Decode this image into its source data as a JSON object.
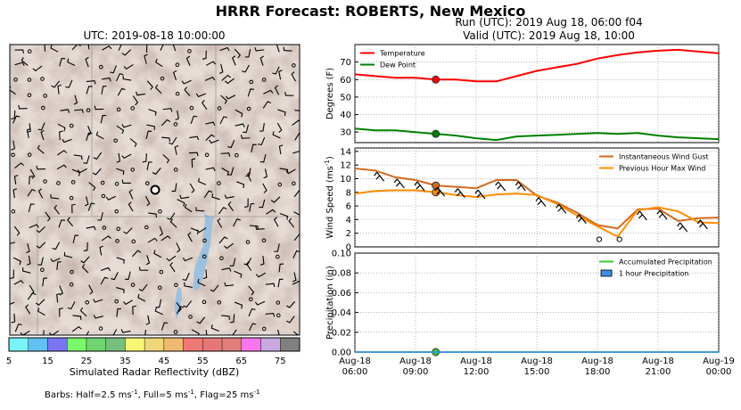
{
  "title": "HRRR Forecast: ROBERTS, New Mexico",
  "map": {
    "title": "UTC: 2019-08-18 10:00:00",
    "colorbar": {
      "label": "Simulated Radar Reflectivity (dBZ)",
      "ticks": [
        "5",
        "15",
        "25",
        "35",
        "45",
        "55",
        "65",
        "75"
      ],
      "colors": [
        "#7af3f7",
        "#62c1f2",
        "#7b75f5",
        "#79f869",
        "#70d46f",
        "#77c07c",
        "#f7f774",
        "#f0d67a",
        "#f0b972",
        "#f07876",
        "#e77776",
        "#e07f7a",
        "#f776f0",
        "#c9a8e0",
        "#808080"
      ]
    },
    "barbs_note": {
      "lead": "Barbs: Half=2.5 ms",
      "half_exp": "-1",
      "mid": ", Full=5 ms",
      "full_exp": "-1",
      "tail": ", Flag=25 ms",
      "flag_exp": "-1"
    }
  },
  "run": {
    "line1": "Run (UTC): 2019 Aug 18, 06:00 f04",
    "line2": "Valid (UTC): 2019 Aug 18, 10:00"
  },
  "x_axis": {
    "tick_labels": [
      {
        "date": "Aug-18",
        "time": "06:00"
      },
      {
        "date": "Aug-18",
        "time": "09:00"
      },
      {
        "date": "Aug-18",
        "time": "12:00"
      },
      {
        "date": "Aug-18",
        "time": "15:00"
      },
      {
        "date": "Aug-18",
        "time": "18:00"
      },
      {
        "date": "Aug-18",
        "time": "21:00"
      },
      {
        "date": "Aug-19",
        "time": "00:00"
      }
    ]
  },
  "chart_data": [
    {
      "type": "line",
      "ylabel": "Degrees (F)",
      "ylim": [
        24,
        80
      ],
      "yticks": [
        "30",
        "40",
        "50",
        "60",
        "70"
      ],
      "x": [
        "2019-08-18 06:00",
        "2019-08-18 07:00",
        "2019-08-18 08:00",
        "2019-08-18 09:00",
        "2019-08-18 10:00",
        "2019-08-18 11:00",
        "2019-08-18 12:00",
        "2019-08-18 13:00",
        "2019-08-18 14:00",
        "2019-08-18 15:00",
        "2019-08-18 16:00",
        "2019-08-18 17:00",
        "2019-08-18 18:00",
        "2019-08-18 19:00",
        "2019-08-18 20:00",
        "2019-08-18 21:00",
        "2019-08-18 22:00",
        "2019-08-18 23:00",
        "2019-08-19 00:00"
      ],
      "series": [
        {
          "name": "Temperature",
          "color": "#ff0000",
          "values": [
            63,
            62,
            61,
            61,
            60,
            60,
            59,
            59,
            62,
            65,
            67,
            69,
            72,
            74,
            75.5,
            76.5,
            77,
            76,
            75
          ]
        },
        {
          "name": "Dew Point",
          "color": "#008000",
          "values": [
            32,
            31,
            31,
            30,
            29,
            28,
            26.5,
            25.5,
            27.5,
            28,
            28.5,
            29,
            29.5,
            29,
            29.5,
            28,
            27,
            26.5,
            26
          ]
        }
      ],
      "marker_x": "2019-08-18 10:00",
      "legend": "top-left",
      "grid": true
    },
    {
      "type": "line",
      "ylabel": "Wind Speed (ms",
      "ylabel_exp": "-1",
      "ylabel_close": ")",
      "ylim": [
        0,
        14.5
      ],
      "yticks": [
        "0",
        "2",
        "4",
        "6",
        "8",
        "10",
        "12",
        "14"
      ],
      "x": [
        "2019-08-18 06:00",
        "2019-08-18 07:00",
        "2019-08-18 08:00",
        "2019-08-18 09:00",
        "2019-08-18 10:00",
        "2019-08-18 11:00",
        "2019-08-18 12:00",
        "2019-08-18 13:00",
        "2019-08-18 14:00",
        "2019-08-18 15:00",
        "2019-08-18 16:00",
        "2019-08-18 17:00",
        "2019-08-18 18:00",
        "2019-08-18 19:00",
        "2019-08-18 20:00",
        "2019-08-18 21:00",
        "2019-08-18 22:00",
        "2019-08-18 23:00",
        "2019-08-19 00:00"
      ],
      "series": [
        {
          "name": "Instantaneous Wind Gust",
          "color": "#d2691e",
          "values": [
            11.5,
            11.2,
            10.2,
            9.8,
            9.0,
            8.8,
            8.6,
            9.8,
            9.8,
            7.5,
            6.5,
            5.0,
            3.2,
            2.7,
            5.5,
            5.6,
            3.8,
            4.2,
            4.3
          ]
        },
        {
          "name": "Previous Hour Max Wind",
          "color": "#ff8c00",
          "values": [
            7.8,
            8.2,
            8.3,
            8.3,
            8.0,
            7.6,
            7.3,
            7.7,
            7.8,
            7.6,
            6.3,
            4.6,
            3.0,
            1.5,
            5.4,
            5.8,
            5.2,
            3.6,
            3.5
          ]
        }
      ],
      "marker_x": "2019-08-18 10:00",
      "legend": "top-right",
      "grid": true
    },
    {
      "type": "bar",
      "ylabel": "Precipitation (in)",
      "ylim": [
        0,
        0.1
      ],
      "yticks": [
        "0.00",
        "0.02",
        "0.04",
        "0.06",
        "0.08",
        "0.10"
      ],
      "series": [
        {
          "name": "Accumulated Precipitation",
          "color": "#33cc33",
          "values": [
            0,
            0,
            0,
            0,
            0,
            0,
            0,
            0,
            0,
            0,
            0,
            0,
            0,
            0,
            0,
            0,
            0,
            0,
            0
          ]
        },
        {
          "name": "1 hour Precipitation",
          "color": "#3e8ee3",
          "values": [
            0,
            0,
            0,
            0,
            0,
            0,
            0,
            0,
            0,
            0,
            0,
            0,
            0,
            0,
            0,
            0,
            0,
            0,
            0
          ]
        }
      ],
      "marker_x": "2019-08-18 10:00",
      "legend": "top-right",
      "grid": true
    }
  ]
}
